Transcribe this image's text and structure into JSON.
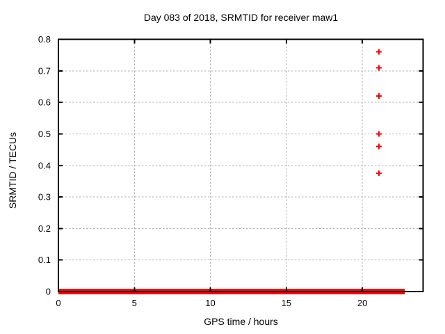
{
  "window": {
    "background": "#ffffff"
  },
  "chart_data": {
    "type": "scatter",
    "title": "Day 083 of 2018, SRMTID for receiver maw1",
    "xlabel": "GPS time / hours",
    "ylabel": "SRMTID / TECUs",
    "xlim": [
      0,
      24
    ],
    "ylim": [
      0,
      0.8
    ],
    "xticks": [
      0,
      5,
      10,
      15,
      20
    ],
    "xtick_labels": [
      "0",
      "5",
      "10",
      "15",
      "20"
    ],
    "yticks": [
      0,
      0.1,
      0.2,
      0.3,
      0.4,
      0.5,
      0.6,
      0.7,
      0.8
    ],
    "ytick_labels": [
      "0",
      "0.1",
      "0.2",
      "0.3",
      "0.4",
      "0.5",
      "0.6",
      "0.7",
      "0.8"
    ],
    "grid": true,
    "legend_position": "none",
    "marker": "plus",
    "series": [
      {
        "name": "SRMTID",
        "color": "#ff0000",
        "outlier_points": [
          {
            "x": 21.1,
            "y": 0.76
          },
          {
            "x": 21.1,
            "y": 0.71
          },
          {
            "x": 21.1,
            "y": 0.62
          },
          {
            "x": 21.1,
            "y": 0.5
          },
          {
            "x": 21.1,
            "y": 0.46
          },
          {
            "x": 21.1,
            "y": 0.375
          }
        ],
        "zero_line_band": {
          "y": 0,
          "x_start": 0,
          "x_end": 22.8
        }
      }
    ],
    "colors": {
      "marker": "#ff0000",
      "grid": "#b0b0b0",
      "frame": "#000000",
      "text": "#000000"
    }
  }
}
